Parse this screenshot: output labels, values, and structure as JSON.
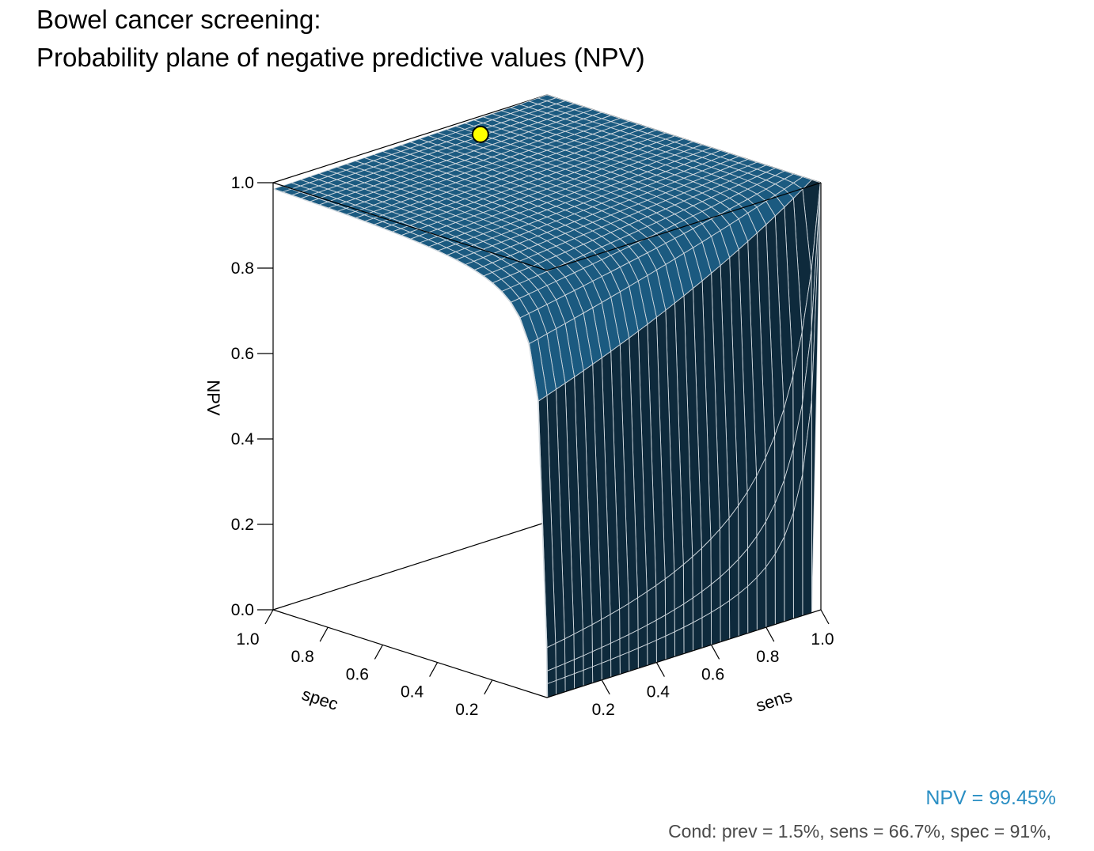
{
  "title_line1": "Bowel cancer screening:",
  "title_line2": "Probability plane of negative predictive values (NPV)",
  "npv_readout": "NPV = 99.45%",
  "cond_readout": "Cond:  prev = 1.5%, sens = 66.7%, spec = 91%,",
  "colors": {
    "surface_top": "#1b5a80",
    "surface_front": "#0e2a3c",
    "surface_right": "#16557a",
    "mesh_line": "#d0d8de",
    "marker": "#ffff00",
    "accent": "#2b8fc4"
  },
  "chart_data": {
    "type": "surface3d",
    "function": "NPV = spec*(1-prev) / (spec*(1-prev) + (1-sens)*prev)",
    "prev": 0.015,
    "axes": {
      "z": {
        "label": "NPV",
        "range": [
          0,
          1
        ],
        "ticks": [
          "0.0",
          "0.2",
          "0.4",
          "0.6",
          "0.8",
          "1.0"
        ]
      },
      "spec": {
        "label": "spec",
        "range": [
          0,
          1
        ],
        "ticks": [
          "0.2",
          "0.4",
          "0.6",
          "0.8",
          "1.0"
        ]
      },
      "sens": {
        "label": "sens",
        "range": [
          0,
          1
        ],
        "ticks": [
          "0.2",
          "0.4",
          "0.6",
          "0.8",
          "1.0"
        ]
      }
    },
    "highlight_point": {
      "sens": 0.667,
      "spec": 0.91,
      "npv": 0.9945
    }
  }
}
